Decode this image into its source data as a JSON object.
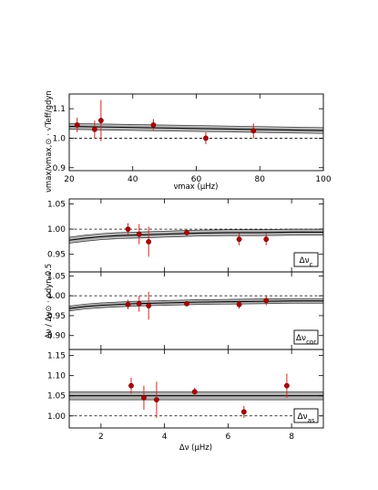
{
  "chart_data": [
    {
      "type": "scatter",
      "panel": "top",
      "xlim": [
        20,
        100
      ],
      "ylim": [
        0.89,
        1.15
      ],
      "xticks": [
        20,
        40,
        60,
        80,
        100
      ],
      "yticks": [
        0.9,
        1.0,
        1.1
      ],
      "ytick_labels": [
        "0.9",
        "1.0",
        "1.1"
      ],
      "xlabel": "νmax (μHz)",
      "ylabel": "νmax/νmax,⊙ · √Teff/gdyn",
      "reference_line": 1.0,
      "fit": {
        "x": [
          20,
          100
        ],
        "y": [
          1.04,
          1.026
        ],
        "band": 0.01
      },
      "points": [
        {
          "x": 22.5,
          "y": 1.045,
          "err": 0.025
        },
        {
          "x": 28,
          "y": 1.03,
          "err": 0.03
        },
        {
          "x": 30,
          "y": 1.06,
          "err": 0.07
        },
        {
          "x": 46.5,
          "y": 1.045,
          "err": 0.02
        },
        {
          "x": 63,
          "y": 1.0,
          "err": 0.02
        },
        {
          "x": 78,
          "y": 1.025,
          "err": 0.025
        }
      ]
    },
    {
      "type": "scatter",
      "panel": "mid1",
      "xlim": [
        1,
        9
      ],
      "ylim": [
        0.915,
        1.06
      ],
      "yticks": [
        0.95,
        1.0,
        1.05
      ],
      "ytick_labels": [
        "0.95",
        "1.00",
        "1.05"
      ],
      "reference_line": 1.0,
      "legend": "Δνc",
      "fit": {
        "x": [
          1,
          1.5,
          2,
          2.5,
          3,
          3.5,
          4,
          4.5,
          5,
          6,
          7,
          8,
          9
        ],
        "y": [
          0.978,
          0.982,
          0.985,
          0.987,
          0.988,
          0.989,
          0.99,
          0.991,
          0.992,
          0.993,
          0.993,
          0.994,
          0.994
        ],
        "band": 0.006
      },
      "points": [
        {
          "x": 2.85,
          "y": 1.0,
          "err": 0.012
        },
        {
          "x": 3.2,
          "y": 0.99,
          "err": 0.02
        },
        {
          "x": 3.5,
          "y": 0.975,
          "err": 0.03
        },
        {
          "x": 4.7,
          "y": 0.993,
          "err": 0.006
        },
        {
          "x": 6.35,
          "y": 0.98,
          "err": 0.012
        },
        {
          "x": 7.2,
          "y": 0.98,
          "err": 0.012
        }
      ]
    },
    {
      "type": "scatter",
      "panel": "mid2",
      "xlim": [
        1,
        9
      ],
      "ylim": [
        0.865,
        1.06
      ],
      "yticks": [
        0.9,
        0.95,
        1.0,
        1.05
      ],
      "ytick_labels": [
        "0.90",
        "0.95",
        "1.00",
        "1.05"
      ],
      "reference_line": 1.0,
      "legend": "Δνcor",
      "fit": {
        "x": [
          1,
          1.5,
          2,
          2.5,
          3,
          3.5,
          4,
          4.5,
          5,
          6,
          7,
          8,
          9
        ],
        "y": [
          0.968,
          0.973,
          0.976,
          0.978,
          0.98,
          0.981,
          0.982,
          0.983,
          0.984,
          0.985,
          0.986,
          0.987,
          0.987
        ],
        "band": 0.006
      },
      "points": [
        {
          "x": 2.85,
          "y": 0.978,
          "err": 0.012
        },
        {
          "x": 3.2,
          "y": 0.98,
          "err": 0.02
        },
        {
          "x": 3.5,
          "y": 0.975,
          "err": 0.035
        },
        {
          "x": 4.7,
          "y": 0.98,
          "err": 0.006
        },
        {
          "x": 6.35,
          "y": 0.978,
          "err": 0.01
        },
        {
          "x": 7.2,
          "y": 0.988,
          "err": 0.012
        }
      ]
    },
    {
      "type": "scatter",
      "panel": "bottom",
      "xlim": [
        1,
        9
      ],
      "ylim": [
        0.97,
        1.165
      ],
      "xticks": [
        2,
        4,
        6,
        8
      ],
      "yticks": [
        1.0,
        1.05,
        1.1,
        1.15
      ],
      "ytick_labels": [
        "1.00",
        "1.05",
        "1.10",
        "1.15"
      ],
      "xlabel": "Δν (μHz)",
      "shared_ylabel": "Δν / Δν⊙ · ρdyn-0.5",
      "reference_line": 1.0,
      "legend": "Δνas",
      "fit": {
        "x": [
          1,
          9
        ],
        "y": [
          1.05,
          1.05
        ],
        "band": 0.01
      },
      "points": [
        {
          "x": 2.95,
          "y": 1.075,
          "err": 0.02
        },
        {
          "x": 3.35,
          "y": 1.045,
          "err": 0.03
        },
        {
          "x": 3.75,
          "y": 1.04,
          "err": 0.045
        },
        {
          "x": 4.95,
          "y": 1.06,
          "err": 0.01
        },
        {
          "x": 6.5,
          "y": 1.01,
          "err": 0.015
        },
        {
          "x": 7.85,
          "y": 1.075,
          "err": 0.03
        }
      ]
    }
  ]
}
